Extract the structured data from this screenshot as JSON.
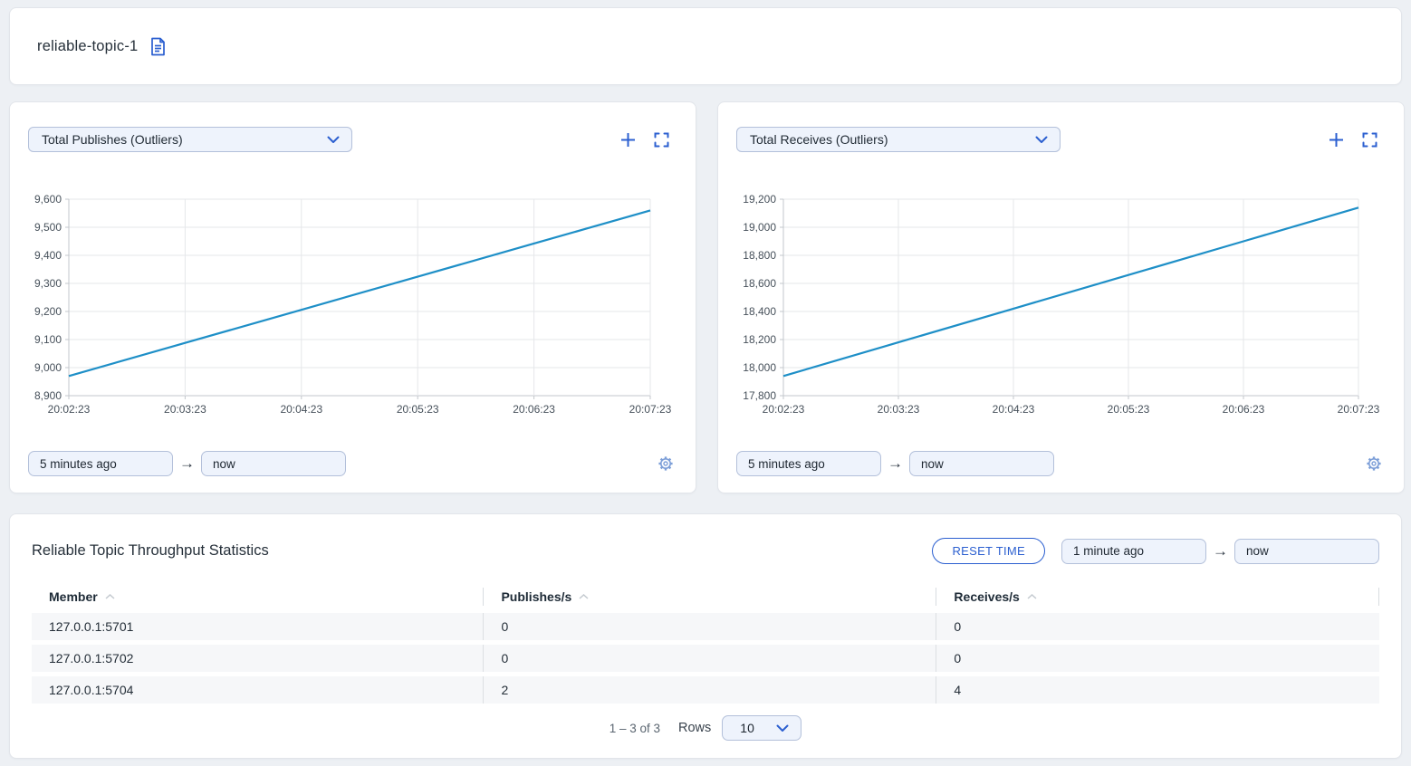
{
  "header": {
    "title": "reliable-topic-1"
  },
  "charts": [
    {
      "selector_label": "Total Publishes (Outliers)",
      "from_value": "5 minutes ago",
      "to_value": "now"
    },
    {
      "selector_label": "Total Receives (Outliers)",
      "from_value": "5 minutes ago",
      "to_value": "now"
    }
  ],
  "chart_data": [
    {
      "type": "line",
      "title": "Total Publishes (Outliers)",
      "x": [
        "20:02:23",
        "20:03:23",
        "20:04:23",
        "20:05:23",
        "20:06:23",
        "20:07:23"
      ],
      "series": [
        {
          "name": "Total Publishes",
          "values": [
            8970,
            9088,
            9206,
            9324,
            9442,
            9560
          ]
        }
      ],
      "ylim": [
        8900,
        9600
      ],
      "ytick_step": 100,
      "grid": true,
      "legend": "none",
      "line_color": "#1e8fc7"
    },
    {
      "type": "line",
      "title": "Total Receives (Outliers)",
      "x": [
        "20:02:23",
        "20:03:23",
        "20:04:23",
        "20:05:23",
        "20:06:23",
        "20:07:23"
      ],
      "series": [
        {
          "name": "Total Receives",
          "values": [
            17940,
            18180,
            18420,
            18660,
            18900,
            19140
          ]
        }
      ],
      "ylim": [
        17800,
        19200
      ],
      "ytick_step": 200,
      "grid": true,
      "legend": "none",
      "line_color": "#1e8fc7"
    }
  ],
  "stats": {
    "title": "Reliable Topic Throughput Statistics",
    "reset_label": "RESET TIME",
    "from_value": "1 minute ago",
    "to_value": "now",
    "table": {
      "columns": [
        "Member",
        "Publishes/s",
        "Receives/s"
      ],
      "rows": [
        {
          "member": "127.0.0.1:5701",
          "publishes": "0",
          "receives": "0"
        },
        {
          "member": "127.0.0.1:5702",
          "publishes": "0",
          "receives": "0"
        },
        {
          "member": "127.0.0.1:5704",
          "publishes": "2",
          "receives": "4"
        }
      ]
    },
    "pagination": {
      "range": "1 – 3 of 3",
      "rows_label": "Rows",
      "rows_value": "10"
    }
  },
  "icons": {
    "document_icon": "page-with-lines",
    "chevron_down_icon": "v-chevron",
    "plus_icon": "+",
    "fullscreen_icon": "corner-brackets",
    "arrow_right": "→",
    "gear": "⚙",
    "sort_up_icon": "^"
  },
  "colors": {
    "accent_blue": "#2b5fd0",
    "chart_line": "#1e8fc7",
    "input_bg": "#eef3fc",
    "input_border": "#b3c0da",
    "page_bg": "#edf0f4"
  }
}
